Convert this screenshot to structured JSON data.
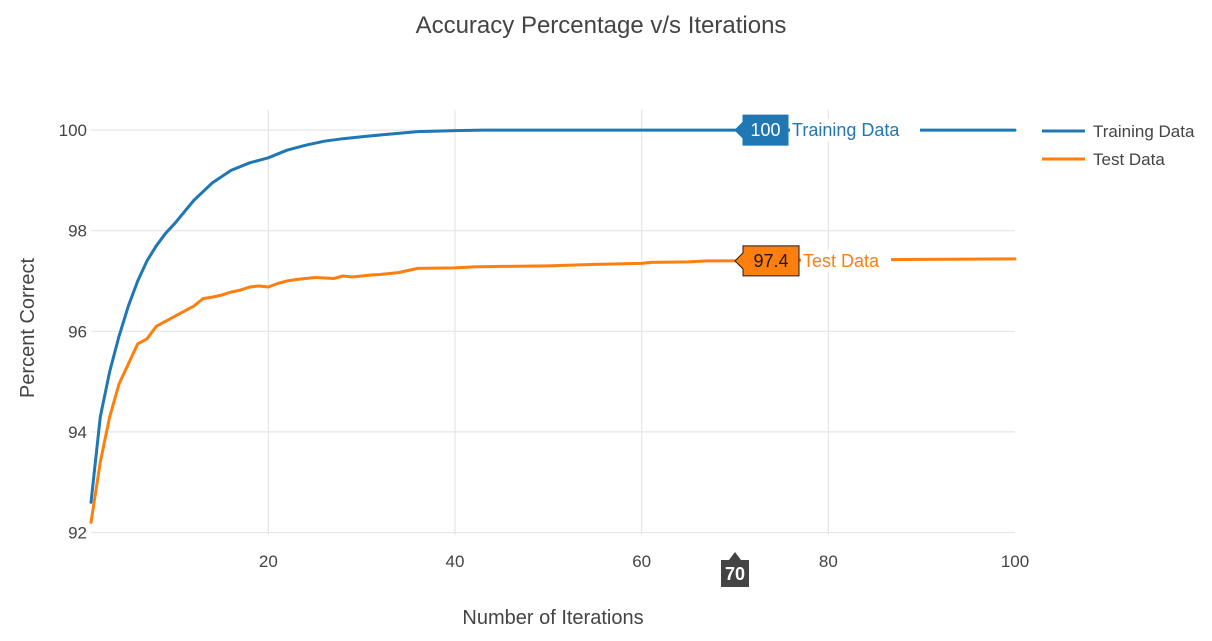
{
  "chart_data": {
    "type": "line",
    "title": "Accuracy Percentage v/s Iterations",
    "xlabel": "Number of Iterations",
    "ylabel": "Percent Correct",
    "xlim": [
      1,
      100
    ],
    "ylim": [
      91.95,
      100.4
    ],
    "xticks": [
      20,
      40,
      60,
      80,
      100
    ],
    "yticks": [
      92,
      94,
      96,
      98,
      100
    ],
    "grid": true,
    "legend_position": "top-right",
    "series": [
      {
        "name": "Training Data",
        "color": "#1f77b4",
        "x": [
          1,
          2,
          3,
          4,
          5,
          6,
          7,
          8,
          9,
          10,
          12,
          14,
          16,
          18,
          20,
          22,
          24,
          26,
          28,
          30,
          33,
          36,
          40,
          43,
          50,
          60,
          70,
          80,
          90,
          100
        ],
        "values": [
          92.6,
          94.3,
          95.2,
          95.9,
          96.5,
          97.0,
          97.4,
          97.7,
          97.95,
          98.15,
          98.6,
          98.95,
          99.2,
          99.35,
          99.45,
          99.6,
          99.7,
          99.78,
          99.83,
          99.87,
          99.92,
          99.97,
          99.99,
          100.0,
          100.0,
          100.0,
          100.0,
          100.0,
          100.0,
          100.0
        ]
      },
      {
        "name": "Test Data",
        "color": "#ff7f0e",
        "x": [
          1,
          2,
          3,
          4,
          5,
          6,
          7,
          8,
          9,
          10,
          11,
          12,
          13,
          14,
          15,
          16,
          17,
          18,
          19,
          20,
          21,
          22,
          23,
          24,
          25,
          26,
          27,
          28,
          29,
          30,
          31,
          32,
          34,
          36,
          40,
          42,
          45,
          50,
          55,
          60,
          61,
          65,
          67,
          70,
          75,
          80,
          90,
          100
        ],
        "values": [
          92.2,
          93.4,
          94.3,
          94.95,
          95.35,
          95.75,
          95.85,
          96.1,
          96.2,
          96.3,
          96.4,
          96.5,
          96.65,
          96.68,
          96.72,
          96.78,
          96.82,
          96.88,
          96.9,
          96.88,
          96.95,
          97.0,
          97.03,
          97.05,
          97.07,
          97.06,
          97.05,
          97.1,
          97.08,
          97.1,
          97.12,
          97.13,
          97.17,
          97.25,
          97.26,
          97.28,
          97.29,
          97.3,
          97.33,
          97.35,
          97.37,
          97.38,
          97.4,
          97.4,
          97.41,
          97.42,
          97.43,
          97.44
        ]
      }
    ],
    "hover": {
      "x_label": "70",
      "labels": [
        {
          "value": "100",
          "series": "Training Data",
          "bg": "#1f77b4",
          "text_color": "#ffffff"
        },
        {
          "value": "97.4",
          "series": "Test Data",
          "bg": "#ff7f0e",
          "text_color": "#1a1a1a"
        }
      ]
    },
    "colors": {
      "grid": "#e6e6e6",
      "text": "#444444",
      "hover_axis_bg": "#444444"
    }
  }
}
